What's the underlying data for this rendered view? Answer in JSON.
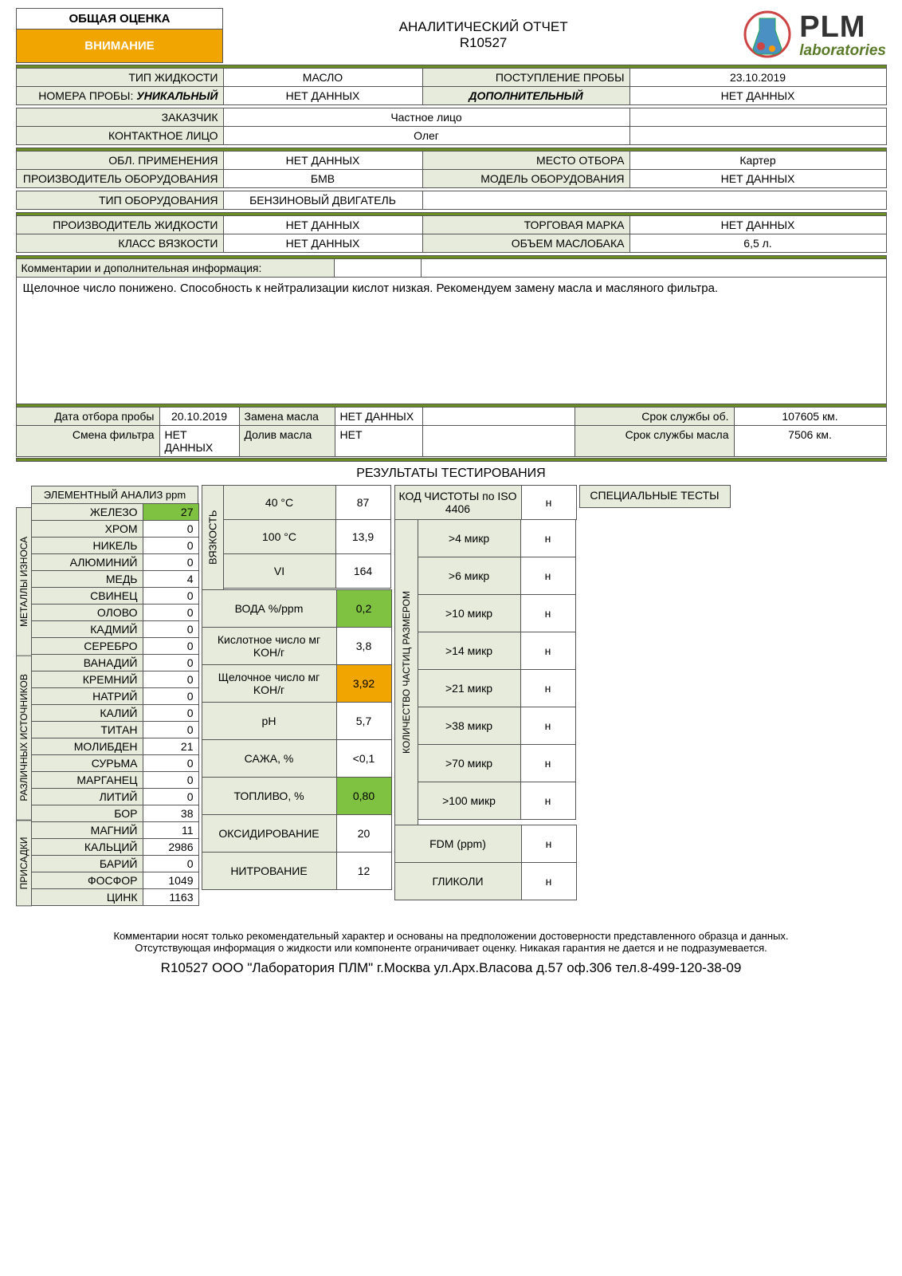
{
  "header": {
    "overall_label": "ОБЩАЯ ОЦЕНКА",
    "attention": "ВНИМАНИЕ",
    "report_title": "АНАЛИТИЧЕСКИЙ ОТЧЕТ",
    "report_id": "R10527",
    "logo_plm": "PLM",
    "logo_lab": "laboratories"
  },
  "info": {
    "fluid_type_label": "ТИП ЖИДКОСТИ",
    "fluid_type": "МАСЛО",
    "sample_recv_label": "ПОСТУПЛЕНИЕ ПРОБЫ",
    "sample_recv": "23.10.2019",
    "sample_num_label": "НОМЕРА ПРОБЫ:",
    "unique": "УНИКАЛЬНЫЙ",
    "sample_num": "НЕТ ДАННЫХ",
    "additional_label": "ДОПОЛНИТЕЛЬНЫЙ",
    "additional": "НЕТ ДАННЫХ",
    "customer_label": "ЗАКАЗЧИК",
    "customer": "Частное лицо",
    "contact_label": "КОНТАКТНОЕ ЛИЦО",
    "contact": "Олег",
    "application_label": "ОБЛ. ПРИМЕНЕНИЯ",
    "application": "НЕТ ДАННЫХ",
    "sample_loc_label": "МЕСТО ОТБОРА",
    "sample_loc": "Картер",
    "equip_maker_label": "ПРОИЗВОДИТЕЛЬ ОБОРУДОВАНИЯ",
    "equip_maker": "БМВ",
    "equip_model_label": "МОДЕЛЬ ОБОРУДОВАНИЯ",
    "equip_model": "НЕТ ДАННЫХ",
    "equip_type_label": "ТИП ОБОРУДОВАНИЯ",
    "equip_type": "БЕНЗИНОВЫЙ ДВИГАТЕЛЬ",
    "fluid_maker_label": "ПРОИЗВОДИТЕЛЬ ЖИДКОСТИ",
    "fluid_maker": "НЕТ ДАННЫХ",
    "brand_label": "ТОРГОВАЯ МАРКА",
    "brand": "НЕТ ДАННЫХ",
    "visc_class_label": "КЛАСС ВЯЗКОСТИ",
    "visc_class": "НЕТ ДАННЫХ",
    "tank_vol_label": "ОБЪЕМ МАСЛОБАКА",
    "tank_vol": "6,5 л.",
    "comments_label": "Комментарии и дополнительная информация:",
    "comments_body": "Щелочное число понижено. Способность к нейтрализации кислот низкая. Рекомендуем замену масла и масляного фильтра.",
    "sample_date_label": "Дата отбора пробы",
    "sample_date": "20.10.2019",
    "oil_change_label": "Замена масла",
    "oil_change": "НЕТ ДАННЫХ",
    "service_life_label": "Срок службы об.",
    "service_life": "107605 км.",
    "filter_change_label": "Смена фильтра",
    "filter_change": "НЕТ ДАННЫХ",
    "topup_label": "Долив масла",
    "topup": "НЕТ",
    "oil_life_label": "Срок службы масла",
    "oil_life": "7506 км."
  },
  "results_header": "РЕЗУЛЬТАТЫ ТЕСТИРОВАНИЯ",
  "elem_header": "ЭЛЕМЕНТНЫЙ АНАЛИЗ ppm",
  "wear_label": "МЕТАЛЛЫ ИЗНОСА",
  "sources_label": "РАЗЛИЧНЫХ ИСТОЧНИКОВ",
  "additives_label": "ПРИСАДКИ",
  "elements": {
    "wear": [
      {
        "n": "ЖЕЛЕЗО",
        "v": "27",
        "hl": "green"
      },
      {
        "n": "ХРОМ",
        "v": "0"
      },
      {
        "n": "НИКЕЛЬ",
        "v": "0"
      },
      {
        "n": "АЛЮМИНИЙ",
        "v": "0"
      },
      {
        "n": "МЕДЬ",
        "v": "4"
      },
      {
        "n": "СВИНЕЦ",
        "v": "0"
      },
      {
        "n": "ОЛОВО",
        "v": "0"
      },
      {
        "n": "КАДМИЙ",
        "v": "0"
      },
      {
        "n": "СЕРЕБРО",
        "v": "0"
      }
    ],
    "sources": [
      {
        "n": "ВАНАДИЙ",
        "v": "0"
      },
      {
        "n": "КРЕМНИЙ",
        "v": "0"
      },
      {
        "n": "НАТРИЙ",
        "v": "0"
      },
      {
        "n": "КАЛИЙ",
        "v": "0"
      },
      {
        "n": "ТИТАН",
        "v": "0"
      },
      {
        "n": "МОЛИБДЕН",
        "v": "21"
      },
      {
        "n": "СУРЬМА",
        "v": "0"
      },
      {
        "n": "МАРГАНЕЦ",
        "v": "0"
      },
      {
        "n": "ЛИТИЙ",
        "v": "0"
      },
      {
        "n": "БОР",
        "v": "38"
      }
    ],
    "additives": [
      {
        "n": "МАГНИЙ",
        "v": "11"
      },
      {
        "n": "КАЛЬЦИЙ",
        "v": "2986"
      },
      {
        "n": "БАРИЙ",
        "v": "0"
      },
      {
        "n": "ФОСФОР",
        "v": "1049"
      },
      {
        "n": "ЦИНК",
        "v": "1163"
      }
    ]
  },
  "visc_label": "ВЯЗКОСТЬ",
  "viscosity": [
    {
      "l": "40 °C",
      "v": "87"
    },
    {
      "l": "100 °C",
      "v": "13,9"
    },
    {
      "l": "VI",
      "v": "164"
    }
  ],
  "mid_tests": [
    {
      "l": "ВОДА %/ppm",
      "v": "0,2",
      "hl": "green"
    },
    {
      "l": "Кислотное число мг KOH/г",
      "v": "3,8"
    },
    {
      "l": "Щелочное число мг KOH/г",
      "v": "3,92",
      "hl": "orange"
    },
    {
      "l": "pH",
      "v": "5,7"
    },
    {
      "l": "САЖА, %",
      "v": "<0,1"
    },
    {
      "l": "ТОПЛИВО, %",
      "v": "0,80",
      "hl": "green"
    },
    {
      "l": "ОКСИДИРОВАНИЕ",
      "v": "20"
    },
    {
      "l": "НИТРОВАНИЕ",
      "v": "12"
    }
  ],
  "iso_header": "КОД ЧИСТОТЫ по ISO 4406",
  "iso_val": "н",
  "particle_label": "КОЛИЧЕСТВО ЧАСТИЦ РАЗМЕРОМ",
  "particles": [
    {
      "l": ">4 микр",
      "v": "н"
    },
    {
      "l": ">6 микр",
      "v": "н"
    },
    {
      "l": ">10 микр",
      "v": "н"
    },
    {
      "l": ">14 микр",
      "v": "н"
    },
    {
      "l": ">21 микр",
      "v": "н"
    },
    {
      "l": ">38 микр",
      "v": "н"
    },
    {
      "l": ">70 микр",
      "v": "н"
    },
    {
      "l": ">100 микр",
      "v": "н"
    }
  ],
  "extra_tests": [
    {
      "l": "FDM (ppm)",
      "v": "н"
    },
    {
      "l": "ГЛИКОЛИ",
      "v": "н"
    }
  ],
  "special_header": "СПЕЦИАЛЬНЫЕ ТЕСТЫ",
  "footer": {
    "line1": "Комментарии носят только рекомендательный характер и основаны на предположении достоверности представленного образца и данных.",
    "line2": "Отсутствующая информация о жидкости или компоненте ограничивает оценку. Никакая гарантия не дается и не подразумевается.",
    "bottom": "R10527 ООО \"Лаборатория ПЛМ\" г.Москва ул.Арх.Власова д.57 оф.306 тел.8-499-120-38-09"
  },
  "colors": {
    "accent_green": "#6b8e23",
    "hl_green": "#7fc241",
    "hl_orange": "#f0a500",
    "label_bg": "#e6ebdc"
  }
}
